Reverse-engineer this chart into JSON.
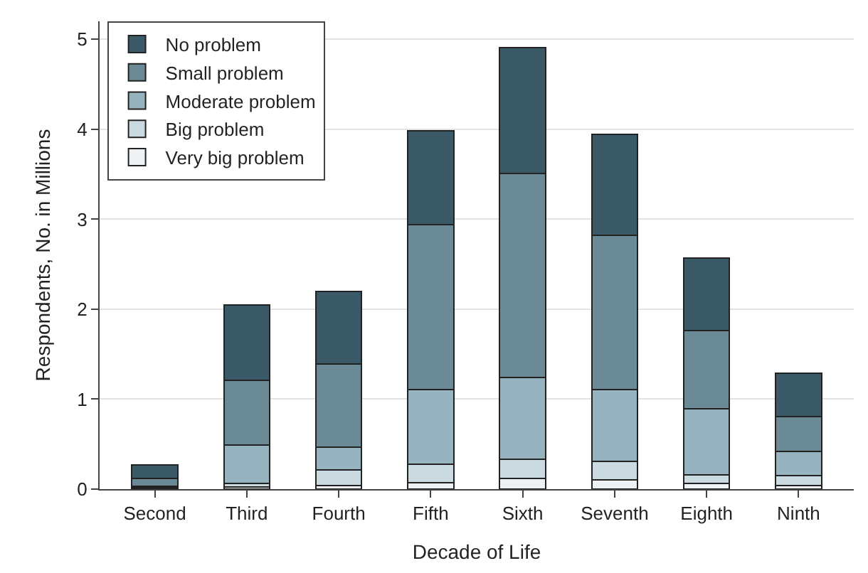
{
  "chart_data": {
    "type": "bar",
    "stacked": true,
    "xlabel": "Decade of Life",
    "ylabel": "Respondents, No. in Millions",
    "categories": [
      "Second",
      "Third",
      "Fourth",
      "Fifth",
      "Sixth",
      "Seventh",
      "Eighth",
      "Ninth"
    ],
    "series": [
      {
        "name": "Very big problem",
        "color": "#eef2f5",
        "values": [
          0.01,
          0.02,
          0.04,
          0.07,
          0.12,
          0.1,
          0.06,
          0.04
        ]
      },
      {
        "name": "Big problem",
        "color": "#cbd9e0",
        "values": [
          0.01,
          0.04,
          0.17,
          0.21,
          0.21,
          0.21,
          0.1,
          0.11
        ]
      },
      {
        "name": "Moderate problem",
        "color": "#96b3bf",
        "values": [
          0.01,
          0.43,
          0.26,
          0.83,
          0.91,
          0.8,
          0.73,
          0.27
        ]
      },
      {
        "name": "Small problem",
        "color": "#6a8a96",
        "values": [
          0.09,
          0.72,
          0.92,
          1.83,
          2.27,
          1.71,
          0.87,
          0.39
        ]
      },
      {
        "name": "No problem",
        "color": "#3a5a68",
        "values": [
          0.15,
          0.84,
          0.81,
          1.04,
          1.4,
          1.12,
          0.81,
          0.48
        ]
      }
    ],
    "ylim": [
      0,
      5.2
    ],
    "yticks": [
      0,
      1,
      2,
      3,
      4,
      5
    ],
    "grid": "y",
    "legend": "top left"
  }
}
